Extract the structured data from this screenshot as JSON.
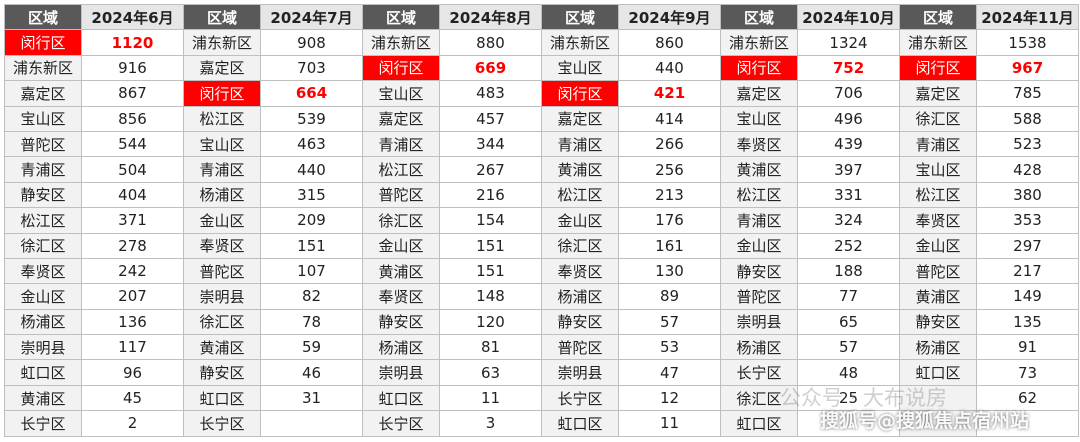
{
  "table": {
    "groups": [
      {
        "region_header": "区域",
        "month": "2024年6月",
        "highlight_row": 0,
        "rows": [
          [
            "闵行区",
            1120
          ],
          [
            "浦东新区",
            916
          ],
          [
            "嘉定区",
            867
          ],
          [
            "宝山区",
            856
          ],
          [
            "普陀区",
            544
          ],
          [
            "青浦区",
            504
          ],
          [
            "静安区",
            404
          ],
          [
            "松江区",
            371
          ],
          [
            "徐汇区",
            278
          ],
          [
            "奉贤区",
            242
          ],
          [
            "金山区",
            207
          ],
          [
            "杨浦区",
            136
          ],
          [
            "崇明县",
            117
          ],
          [
            "虹口区",
            96
          ],
          [
            "黄浦区",
            45
          ],
          [
            "长宁区",
            2
          ]
        ]
      },
      {
        "region_header": "区域",
        "month": "2024年7月",
        "highlight_row": 2,
        "rows": [
          [
            "浦东新区",
            908
          ],
          [
            "嘉定区",
            703
          ],
          [
            "闵行区",
            664
          ],
          [
            "松江区",
            539
          ],
          [
            "宝山区",
            463
          ],
          [
            "青浦区",
            440
          ],
          [
            "杨浦区",
            315
          ],
          [
            "金山区",
            209
          ],
          [
            "奉贤区",
            151
          ],
          [
            "普陀区",
            107
          ],
          [
            "崇明县",
            82
          ],
          [
            "徐汇区",
            78
          ],
          [
            "黄浦区",
            59
          ],
          [
            "静安区",
            46
          ],
          [
            "虹口区",
            31
          ],
          [
            "长宁区",
            null
          ]
        ]
      },
      {
        "region_header": "区域",
        "month": "2024年8月",
        "highlight_row": 1,
        "rows": [
          [
            "浦东新区",
            880
          ],
          [
            "闵行区",
            669
          ],
          [
            "宝山区",
            483
          ],
          [
            "嘉定区",
            457
          ],
          [
            "青浦区",
            344
          ],
          [
            "松江区",
            267
          ],
          [
            "普陀区",
            216
          ],
          [
            "徐汇区",
            154
          ],
          [
            "金山区",
            151
          ],
          [
            "黄浦区",
            151
          ],
          [
            "奉贤区",
            148
          ],
          [
            "静安区",
            120
          ],
          [
            "杨浦区",
            81
          ],
          [
            "崇明县",
            63
          ],
          [
            "虹口区",
            11
          ],
          [
            "长宁区",
            3
          ]
        ]
      },
      {
        "region_header": "区域",
        "month": "2024年9月",
        "highlight_row": 2,
        "rows": [
          [
            "浦东新区",
            860
          ],
          [
            "宝山区",
            440
          ],
          [
            "闵行区",
            421
          ],
          [
            "嘉定区",
            414
          ],
          [
            "青浦区",
            266
          ],
          [
            "黄浦区",
            256
          ],
          [
            "松江区",
            213
          ],
          [
            "金山区",
            176
          ],
          [
            "徐汇区",
            161
          ],
          [
            "奉贤区",
            130
          ],
          [
            "杨浦区",
            89
          ],
          [
            "静安区",
            57
          ],
          [
            "普陀区",
            53
          ],
          [
            "崇明县",
            47
          ],
          [
            "长宁区",
            12
          ],
          [
            "虹口区",
            11
          ]
        ]
      },
      {
        "region_header": "区域",
        "month": "2024年10月",
        "highlight_row": 1,
        "rows": [
          [
            "浦东新区",
            1324
          ],
          [
            "闵行区",
            752
          ],
          [
            "嘉定区",
            706
          ],
          [
            "宝山区",
            496
          ],
          [
            "奉贤区",
            439
          ],
          [
            "黄浦区",
            397
          ],
          [
            "松江区",
            331
          ],
          [
            "青浦区",
            324
          ],
          [
            "金山区",
            252
          ],
          [
            "静安区",
            188
          ],
          [
            "普陀区",
            77
          ],
          [
            "崇明县",
            65
          ],
          [
            "杨浦区",
            57
          ],
          [
            "长宁区",
            48
          ],
          [
            "徐汇区",
            25
          ],
          [
            "虹口区",
            null
          ]
        ]
      },
      {
        "region_header": "区域",
        "month": "2024年11月",
        "highlight_row": 1,
        "rows": [
          [
            "浦东新区",
            1538
          ],
          [
            "闵行区",
            967
          ],
          [
            "嘉定区",
            785
          ],
          [
            "徐汇区",
            588
          ],
          [
            "青浦区",
            523
          ],
          [
            "宝山区",
            428
          ],
          [
            "松江区",
            380
          ],
          [
            "奉贤区",
            353
          ],
          [
            "金山区",
            297
          ],
          [
            "普陀区",
            217
          ],
          [
            "黄浦区",
            149
          ],
          [
            "静安区",
            135
          ],
          [
            "杨浦区",
            91
          ],
          [
            "虹口区",
            73
          ],
          [
            null,
            62
          ],
          [
            null,
            null
          ]
        ]
      }
    ]
  },
  "watermarks": [
    "公众号 · 大布说房",
    "搜狐号@搜狐焦点宿州站"
  ]
}
